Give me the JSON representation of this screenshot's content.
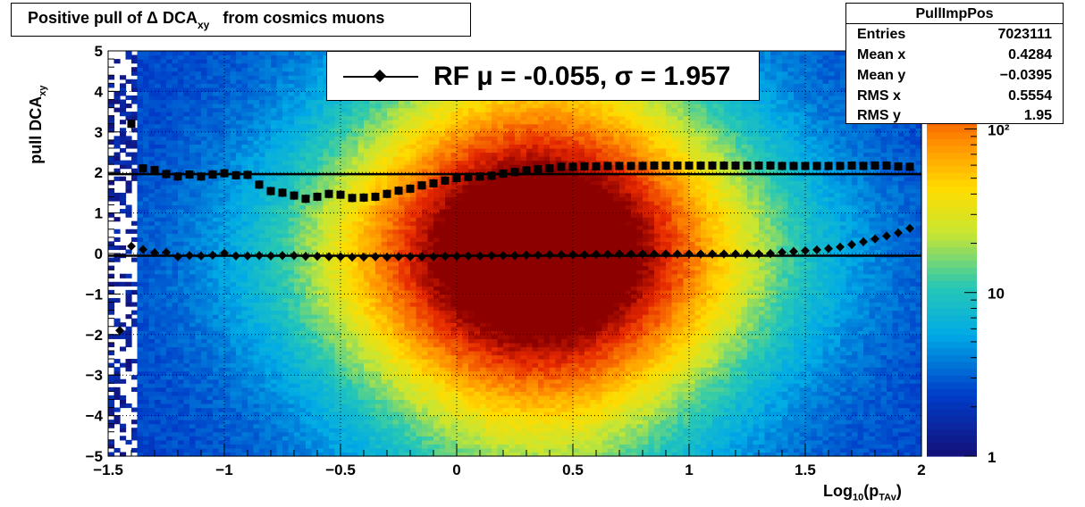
{
  "title": {
    "prefix": "Positive pull of Δ DCA",
    "sub": "xy",
    "suffix": "from cosmics muons"
  },
  "legend": {
    "text": "RF μ = -0.055, σ =   1.957"
  },
  "stats": {
    "name": "PullImpPos",
    "rows": [
      {
        "key": "Entries",
        "value": "7023111"
      },
      {
        "key": "Mean x",
        "value": "0.4284"
      },
      {
        "key": "Mean y",
        "value": "−0.0395"
      },
      {
        "key": "RMS x",
        "value": "0.5554"
      },
      {
        "key": "RMS y",
        "value": "1.95"
      }
    ]
  },
  "axes": {
    "x_label_main": "Log",
    "x_label_sub": "10",
    "x_label_open": "(p",
    "x_label_sub2": "TAv",
    "x_label_close": ")",
    "y_label_main": "pull DCA",
    "y_label_sub": "xy"
  },
  "chart_data": {
    "type": "heatmap",
    "xlim": [
      -1.5,
      2.0
    ],
    "ylim": [
      -5,
      5
    ],
    "x_ticks": [
      -1.5,
      -1,
      -0.5,
      0,
      0.5,
      1,
      1.5,
      2
    ],
    "x_tick_labels": [
      "−1.5",
      "−1",
      "−0.5",
      "0",
      "0.5",
      "1",
      "1.5",
      "2"
    ],
    "y_ticks": [
      -5,
      -4,
      -3,
      -2,
      -1,
      0,
      1,
      2,
      3,
      4,
      5
    ],
    "y_tick_labels": [
      "−5",
      "−4",
      "−3",
      "−2",
      "−1",
      "0",
      "1",
      "2",
      "3",
      "4",
      "5"
    ],
    "z_scale": "log",
    "z_ticks": [
      1,
      10,
      100
    ],
    "z_tick_labels": [
      "1",
      "10",
      "10²"
    ],
    "grid": true,
    "series": [
      {
        "marker": "diamond",
        "x": [
          -1.45,
          -1.4,
          -1.35,
          -1.3,
          -1.25,
          -1.2,
          -1.15,
          -1.1,
          -1.05,
          -1.0,
          -0.95,
          -0.9,
          -0.85,
          -0.8,
          -0.75,
          -0.7,
          -0.65,
          -0.6,
          -0.55,
          -0.5,
          -0.45,
          -0.4,
          -0.35,
          -0.3,
          -0.25,
          -0.2,
          -0.15,
          -0.1,
          -0.05,
          0.0,
          0.05,
          0.1,
          0.15,
          0.2,
          0.25,
          0.3,
          0.35,
          0.4,
          0.45,
          0.5,
          0.55,
          0.6,
          0.65,
          0.7,
          0.75,
          0.8,
          0.85,
          0.9,
          0.95,
          1.0,
          1.05,
          1.1,
          1.15,
          1.2,
          1.25,
          1.3,
          1.35,
          1.4,
          1.45,
          1.5,
          1.55,
          1.6,
          1.65,
          1.7,
          1.75,
          1.8,
          1.85,
          1.9,
          1.95
        ],
        "y": [
          -1.9,
          0.18,
          0.1,
          0.02,
          0.03,
          -0.08,
          -0.05,
          -0.06,
          -0.04,
          0.01,
          -0.06,
          -0.06,
          -0.05,
          -0.06,
          -0.05,
          -0.05,
          -0.07,
          -0.07,
          -0.08,
          -0.08,
          -0.09,
          -0.09,
          -0.08,
          -0.09,
          -0.08,
          -0.08,
          -0.08,
          -0.08,
          -0.07,
          -0.07,
          -0.06,
          -0.06,
          -0.05,
          -0.05,
          -0.05,
          -0.04,
          -0.04,
          -0.03,
          -0.03,
          -0.03,
          -0.03,
          -0.02,
          -0.02,
          -0.01,
          -0.01,
          -0.01,
          -0.01,
          -0.01,
          -0.01,
          -0.01,
          -0.01,
          -0.01,
          -0.01,
          -0.01,
          -0.01,
          -0.01,
          0.0,
          0.03,
          0.05,
          0.07,
          0.09,
          0.12,
          0.16,
          0.22,
          0.29,
          0.36,
          0.43,
          0.51,
          0.62
        ]
      },
      {
        "marker": "square",
        "x": [
          -1.4,
          -1.35,
          -1.3,
          -1.25,
          -1.2,
          -1.15,
          -1.1,
          -1.05,
          -1.0,
          -0.95,
          -0.9,
          -0.85,
          -0.8,
          -0.75,
          -0.7,
          -0.65,
          -0.6,
          -0.55,
          -0.5,
          -0.45,
          -0.4,
          -0.35,
          -0.3,
          -0.25,
          -0.2,
          -0.15,
          -0.1,
          -0.05,
          0.0,
          0.05,
          0.1,
          0.15,
          0.2,
          0.25,
          0.3,
          0.35,
          0.4,
          0.45,
          0.5,
          0.55,
          0.6,
          0.65,
          0.7,
          0.75,
          0.8,
          0.85,
          0.9,
          0.95,
          1.0,
          1.05,
          1.1,
          1.15,
          1.2,
          1.25,
          1.3,
          1.35,
          1.4,
          1.45,
          1.5,
          1.55,
          1.6,
          1.65,
          1.7,
          1.75,
          1.8,
          1.85,
          1.9,
          1.95
        ],
        "y": [
          3.2,
          2.1,
          2.06,
          1.96,
          1.9,
          1.95,
          1.9,
          1.95,
          1.98,
          1.93,
          1.94,
          1.7,
          1.54,
          1.5,
          1.43,
          1.35,
          1.4,
          1.47,
          1.45,
          1.37,
          1.38,
          1.4,
          1.47,
          1.55,
          1.6,
          1.68,
          1.73,
          1.8,
          1.86,
          1.89,
          1.9,
          1.92,
          1.97,
          2.01,
          2.05,
          2.08,
          2.1,
          2.14,
          2.14,
          2.15,
          2.15,
          2.16,
          2.16,
          2.16,
          2.16,
          2.17,
          2.17,
          2.17,
          2.17,
          2.17,
          2.17,
          2.17,
          2.17,
          2.17,
          2.17,
          2.17,
          2.16,
          2.16,
          2.16,
          2.16,
          2.16,
          2.16,
          2.17,
          2.16,
          2.17,
          2.17,
          2.15,
          2.14
        ]
      }
    ],
    "fit_lines": [
      {
        "y": -0.055
      },
      {
        "y": 1.957
      }
    ]
  }
}
